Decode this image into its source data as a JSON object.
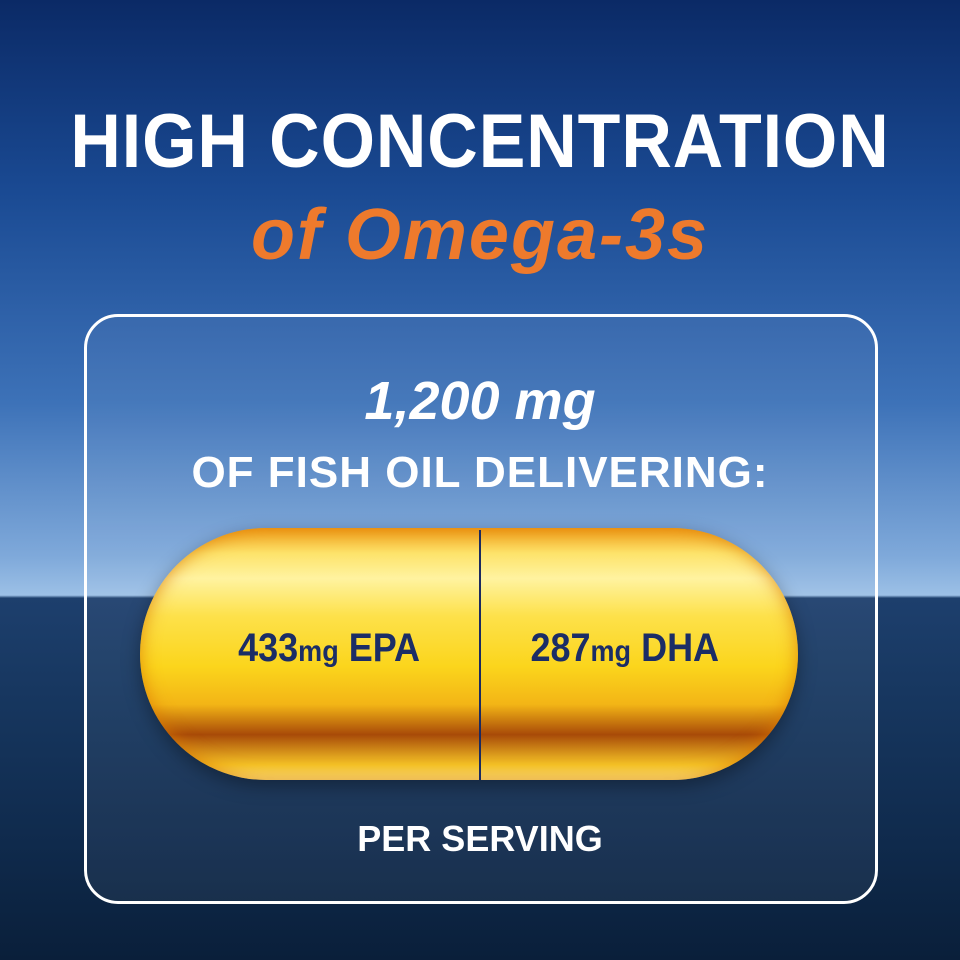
{
  "headline": {
    "line1": "HIGH CONCENTRATION",
    "line2": "of Omega-3s"
  },
  "panel": {
    "amount": "1,200 mg",
    "description": "OF FISH OIL DELIVERING:",
    "capsule": {
      "left": {
        "value": "433",
        "unit": "mg",
        "label": "EPA"
      },
      "right": {
        "value": "287",
        "unit": "mg",
        "label": "DHA"
      }
    },
    "footer": "PER SERVING"
  },
  "colors": {
    "accent": "#ee7a2c",
    "text_dark": "#1b2d66",
    "capsule": "#fbd51c"
  }
}
